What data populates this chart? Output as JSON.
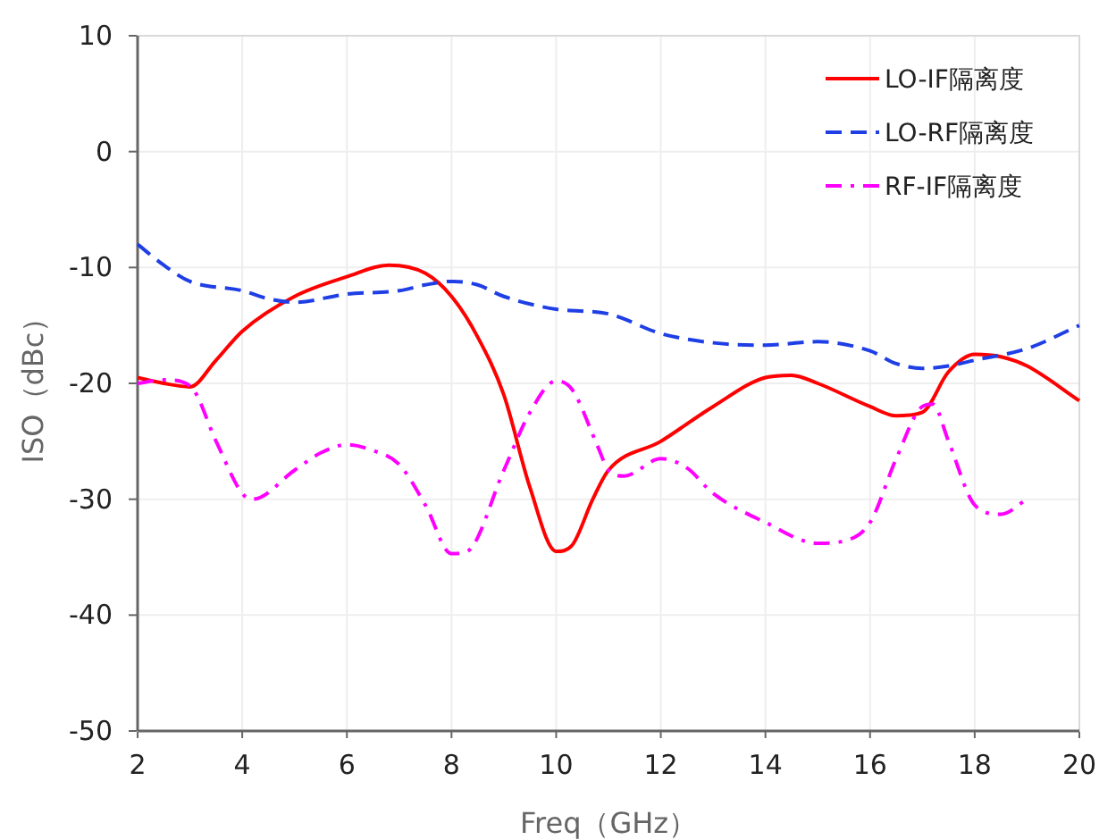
{
  "chart_data": {
    "type": "line",
    "xlabel": "Freq（GHz）",
    "ylabel": "ISO（dBc）",
    "xlim": [
      2,
      20
    ],
    "xticks": [
      2,
      4,
      6,
      8,
      10,
      12,
      14,
      16,
      18,
      20
    ],
    "ylim": [
      -50,
      10
    ],
    "yticks": [
      -50,
      -40,
      -30,
      -20,
      -10,
      0,
      10
    ],
    "grid": true,
    "legend": "top right",
    "series": [
      {
        "name": "LO-IF隔离度",
        "color": "#ff0000",
        "line_style": "solid",
        "x": [
          2,
          2.5,
          3,
          3.5,
          4,
          5,
          6,
          6.8,
          7.5,
          8,
          8.5,
          9,
          9.5,
          10,
          10.3,
          10.7,
          11,
          12,
          13,
          14,
          14.5,
          15,
          16,
          16.5,
          17,
          17.5,
          18,
          18.5,
          19,
          20
        ],
        "values": [
          -19.5,
          -20,
          -20.3,
          -18,
          -15.5,
          -12.5,
          -10.8,
          -9.8,
          -10.5,
          -12.5,
          -16,
          -21,
          -29,
          -34.5,
          -34,
          -30,
          -27.5,
          -25,
          -22,
          -19.5,
          -19.3,
          -20,
          -22,
          -22.8,
          -22.5,
          -19,
          -17.5,
          -17.7,
          -18.5,
          -21.5
        ]
      },
      {
        "name": "LO-RF隔离度",
        "color": "#1f3fe6",
        "line_style": "dashed",
        "x": [
          2,
          2.5,
          3,
          4,
          4.5,
          5,
          6,
          7,
          7.5,
          8,
          8.5,
          9,
          10,
          11,
          12,
          13,
          14,
          15,
          16,
          16.5,
          17,
          17.5,
          18,
          19,
          20
        ],
        "values": [
          -8,
          -9.8,
          -11.2,
          -12,
          -12.7,
          -13,
          -12.3,
          -12,
          -11.5,
          -11.2,
          -11.5,
          -12.5,
          -13.6,
          -14,
          -15.7,
          -16.5,
          -16.7,
          -16.4,
          -17.2,
          -18.3,
          -18.7,
          -18.5,
          -18,
          -17,
          -15
        ]
      },
      {
        "name": "RF-IF隔离度",
        "color": "#ff00ff",
        "line_style": "dashdot",
        "x": [
          2,
          2.5,
          3,
          3.5,
          4,
          4.2,
          5,
          5.5,
          6,
          6.5,
          7,
          7.5,
          8,
          8.3,
          9,
          9.5,
          10,
          10.3,
          10.8,
          11,
          11.3,
          12,
          12.5,
          13,
          14,
          15,
          15.5,
          16,
          16.5,
          17,
          17.2,
          17.5,
          18,
          18.5,
          19
        ],
        "values": [
          -20,
          -19.7,
          -20.2,
          -25,
          -29.5,
          -30,
          -27.5,
          -26,
          -25.3,
          -25.8,
          -27,
          -30.5,
          -34.7,
          -34.5,
          -27.5,
          -22.5,
          -19.8,
          -20.5,
          -25.5,
          -27.5,
          -28,
          -26.5,
          -27.3,
          -29.5,
          -32,
          -33.8,
          -33.6,
          -32,
          -26.5,
          -22,
          -21.8,
          -25,
          -30.5,
          -31.3,
          -30
        ]
      }
    ]
  }
}
